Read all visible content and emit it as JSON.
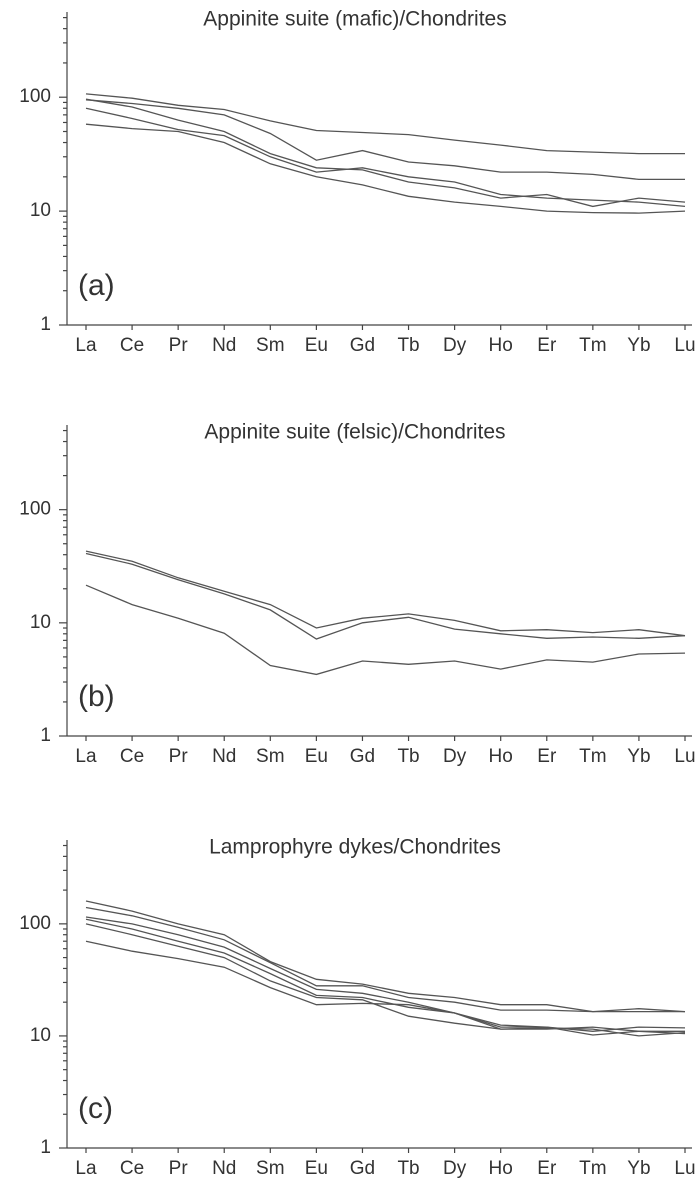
{
  "chart_data": [
    {
      "type": "line",
      "title": "Appinite suite (mafic)/Chondrites",
      "label": "(a)",
      "categories": [
        "La",
        "Ce",
        "Pr",
        "Nd",
        "Sm",
        "Eu",
        "Gd",
        "Tb",
        "Dy",
        "Ho",
        "Er",
        "Tm",
        "Yb",
        "Lu"
      ],
      "log_scale": true,
      "ylim": [
        1,
        560
      ],
      "yticks": [
        1,
        10,
        100
      ],
      "yminorticks": [
        2,
        3,
        4,
        5,
        6,
        7,
        8,
        9,
        20,
        30,
        40,
        50,
        60,
        70,
        80,
        90,
        200,
        300,
        400,
        500
      ],
      "color": "#555555",
      "series": [
        {
          "color": "#555555",
          "values": [
            107,
            98,
            85,
            78,
            62,
            51,
            49,
            47,
            42,
            38,
            34,
            33,
            32,
            32
          ]
        },
        {
          "color": "#555555",
          "values": [
            95,
            88,
            80,
            70,
            48,
            28,
            34,
            27,
            25,
            22,
            22,
            21,
            19,
            19
          ]
        },
        {
          "color": "#555555",
          "values": [
            96,
            82,
            63,
            50,
            32,
            24,
            23,
            18,
            16,
            13,
            14,
            11,
            13,
            12
          ]
        },
        {
          "color": "#555555",
          "values": [
            80,
            65,
            52,
            46,
            30,
            22,
            24,
            20,
            18,
            14,
            13,
            12.5,
            12,
            11
          ]
        },
        {
          "color": "#555555",
          "values": [
            58,
            53,
            50,
            40,
            26,
            20,
            17,
            13.5,
            12,
            11,
            10,
            9.7,
            9.6,
            10
          ]
        }
      ]
    },
    {
      "type": "line",
      "title": "Appinite suite (felsic)/Chondrites",
      "label": "(b)",
      "categories": [
        "La",
        "Ce",
        "Pr",
        "Nd",
        "Sm",
        "Eu",
        "Gd",
        "Tb",
        "Dy",
        "Ho",
        "Er",
        "Tm",
        "Yb",
        "Lu"
      ],
      "log_scale": true,
      "ylim": [
        1,
        560
      ],
      "yticks": [
        1,
        10,
        100
      ],
      "yminorticks": [
        2,
        3,
        4,
        5,
        6,
        7,
        8,
        9,
        20,
        30,
        40,
        50,
        60,
        70,
        80,
        90,
        200,
        300,
        400,
        500
      ],
      "color": "#555555",
      "series": [
        {
          "color": "#555555",
          "values": [
            43,
            35,
            25,
            19,
            14.5,
            9,
            11,
            12,
            10.5,
            8.5,
            8.7,
            8.2,
            8.7,
            7.7
          ]
        },
        {
          "color": "#555555",
          "values": [
            41,
            33,
            24,
            18,
            13,
            7.2,
            10,
            11.2,
            8.8,
            8,
            7.3,
            7.5,
            7.3,
            7.7
          ]
        },
        {
          "color": "#555555",
          "values": [
            21.5,
            14.5,
            11,
            8.1,
            4.2,
            3.5,
            4.6,
            4.3,
            4.6,
            3.9,
            4.7,
            4.5,
            5.3,
            5.4
          ]
        }
      ]
    },
    {
      "type": "line",
      "title": "Lamprophyre dykes/Chondrites",
      "label": "(c)",
      "categories": [
        "La",
        "Ce",
        "Pr",
        "Nd",
        "Sm",
        "Eu",
        "Gd",
        "Tb",
        "Dy",
        "Ho",
        "Er",
        "Tm",
        "Yb",
        "Lu"
      ],
      "log_scale": true,
      "ylim": [
        1,
        560
      ],
      "yticks": [
        1,
        10,
        100
      ],
      "yminorticks": [
        2,
        3,
        4,
        5,
        6,
        7,
        8,
        9,
        20,
        30,
        40,
        50,
        60,
        70,
        80,
        90,
        200,
        300,
        400,
        500
      ],
      "color": "#555555",
      "series": [
        {
          "color": "#555555",
          "values": [
            160,
            130,
            100,
            80,
            46,
            32,
            29,
            24,
            22,
            19,
            19,
            16.5,
            17.5,
            16.5
          ]
        },
        {
          "color": "#555555",
          "values": [
            140,
            118,
            93,
            72,
            45,
            28,
            28,
            22,
            20,
            17,
            17,
            16.5,
            16.5,
            16.5
          ]
        },
        {
          "color": "#555555",
          "values": [
            115,
            100,
            80,
            62,
            40,
            26,
            24,
            20,
            16,
            12.5,
            12,
            11,
            12,
            11.8
          ]
        },
        {
          "color": "#555555",
          "values": [
            110,
            90,
            70,
            55,
            36,
            23,
            22,
            18,
            16,
            12,
            12,
            10.2,
            11,
            11
          ]
        },
        {
          "color": "#555555",
          "values": [
            100,
            80,
            63,
            50,
            31,
            22,
            21,
            15,
            13,
            11.5,
            11.8,
            11.5,
            10,
            10.7
          ]
        },
        {
          "color": "#555555",
          "values": [
            70,
            57,
            49,
            41,
            27,
            19,
            19.5,
            19,
            16,
            11.5,
            11.5,
            12,
            11,
            10.5
          ]
        }
      ]
    }
  ]
}
